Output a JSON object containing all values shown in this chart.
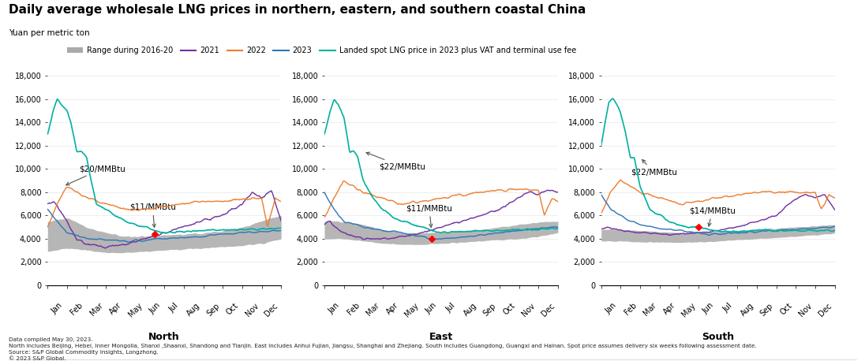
{
  "title": "Daily average wholesale LNG prices in northern, eastern, and southern coastal China",
  "ylabel": "Yuan per metric ton",
  "panels": [
    "North",
    "East",
    "South"
  ],
  "months": [
    "Jan",
    "Feb",
    "Mar",
    "Apr",
    "May",
    "Jun",
    "Jul",
    "Aug",
    "Sep",
    "Oct",
    "Nov",
    "Dec"
  ],
  "ylim": [
    0,
    18000
  ],
  "yticks": [
    0,
    2000,
    4000,
    6000,
    8000,
    10000,
    12000,
    14000,
    16000,
    18000
  ],
  "colors": {
    "range_fill": "#aaaaaa",
    "y2021": "#7030a0",
    "y2022": "#ed7d31",
    "y2023": "#2e75b6",
    "landed": "#00b0a0"
  },
  "footnotes": [
    "Data compiled May 30, 2023.",
    "North includes Beijing, Hebei, Inner Mongolia, Shanxi ,Shaanxi, Shandong and Tianjin. East includes Anhui Fujian, Jiangsu, Shanghai and Zhejiang. South includes Guangdong, Guangxi and Hainan. Spot price assumes delivery six weeks following assessment date.",
    "Source: S&P Global Commodity Insights, Longzhong.",
    "© 2023 S&P Global."
  ]
}
